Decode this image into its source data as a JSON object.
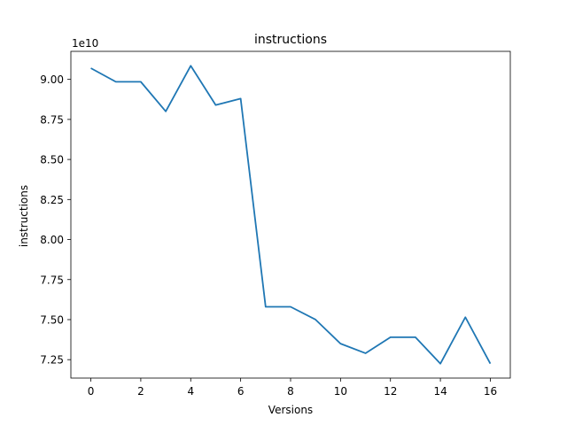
{
  "chart_data": {
    "type": "line",
    "title": "instructions",
    "xlabel": "Versions",
    "ylabel": "instructions",
    "offset_text": "1e10",
    "y_scale_factor": 10000000000,
    "xlim": [
      -0.8,
      16.8
    ],
    "ylim": [
      7.135,
      9.175
    ],
    "x_ticks": [
      0,
      2,
      4,
      6,
      8,
      10,
      12,
      14,
      16
    ],
    "y_ticks": [
      7.25,
      7.5,
      7.75,
      8.0,
      8.25,
      8.5,
      8.75,
      9.0
    ],
    "y_tick_labels": [
      "7.25",
      "7.50",
      "7.75",
      "8.00",
      "8.25",
      "8.50",
      "8.75",
      "9.00"
    ],
    "grid": false,
    "legend": false,
    "series": [
      {
        "color": "#1f77b4",
        "x": [
          0,
          1,
          2,
          3,
          4,
          5,
          6,
          7,
          8,
          9,
          10,
          11,
          12,
          13,
          14,
          15,
          16
        ],
        "values": [
          9.07,
          8.985,
          8.985,
          8.8,
          9.085,
          8.84,
          8.88,
          7.58,
          7.58,
          7.5,
          7.35,
          7.29,
          7.39,
          7.39,
          7.225,
          7.515,
          7.225
        ]
      }
    ]
  }
}
